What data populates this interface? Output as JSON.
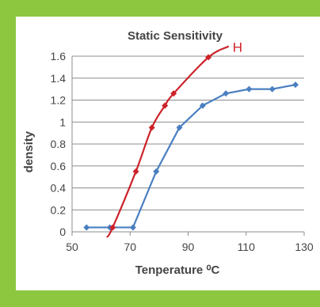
{
  "chart_data": {
    "type": "line",
    "title": "Static Sensitivity",
    "xlabel": "Tenperature ⁰C",
    "ylabel": "density",
    "xlim": [
      50,
      130
    ],
    "ylim": [
      0,
      1.6
    ],
    "x_ticks": [
      50,
      70,
      90,
      110,
      130
    ],
    "x_tick_labels": [
      "50",
      "70",
      "90",
      "110",
      "130"
    ],
    "y_ticks": [
      0,
      0.2,
      0.4,
      0.6,
      0.8,
      1,
      1.2,
      1.4,
      1.6
    ],
    "y_tick_labels": [
      "0",
      "0.2",
      "0.4",
      "0.6",
      "0.8",
      "1",
      "1.2",
      "1.4",
      "1.6"
    ],
    "grid": "horizontal",
    "series": [
      {
        "name": "H",
        "color": "#cc2229",
        "smooth": true,
        "points": [
          [
            64,
            0.04
          ],
          [
            72,
            0.55
          ],
          [
            77.5,
            0.95
          ],
          [
            82,
            1.15
          ],
          [
            85,
            1.26
          ],
          [
            97,
            1.59
          ]
        ],
        "curve_start": [
          62,
          -0.05
        ],
        "curve_end": [
          104,
          1.69
        ]
      },
      {
        "name": "",
        "color": "#4a7fc1",
        "smooth": false,
        "points": [
          [
            55,
            0.04
          ],
          [
            63,
            0.04
          ],
          [
            71,
            0.04
          ],
          [
            79,
            0.55
          ],
          [
            87,
            0.95
          ],
          [
            95,
            1.15
          ],
          [
            103,
            1.26
          ],
          [
            111,
            1.3
          ],
          [
            119,
            1.3
          ],
          [
            127,
            1.34
          ]
        ]
      }
    ]
  }
}
